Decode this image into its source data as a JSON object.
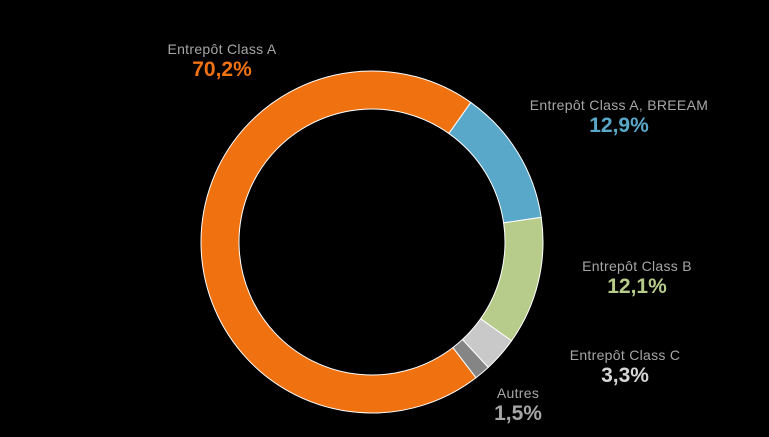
{
  "chart_data": {
    "type": "pie",
    "title": "",
    "legend": "none",
    "slices": [
      {
        "label": "Entrepôt Class A",
        "value": 70.2,
        "value_label": "70,2%",
        "color": "#ef7110"
      },
      {
        "label": "Entrepôt Class A, BREEAM",
        "value": 12.9,
        "value_label": "12,9%",
        "color": "#5aa8c9"
      },
      {
        "label": "Entrepôt Class B",
        "value": 12.1,
        "value_label": "12,1%",
        "color": "#b7cc8a"
      },
      {
        "label": "Entrepôt Class C",
        "value": 3.3,
        "value_label": "3,3%",
        "color": "#c9c9c9"
      },
      {
        "label": "Autres",
        "value": 1.5,
        "value_label": "1,5%",
        "color": "#858585"
      }
    ]
  }
}
